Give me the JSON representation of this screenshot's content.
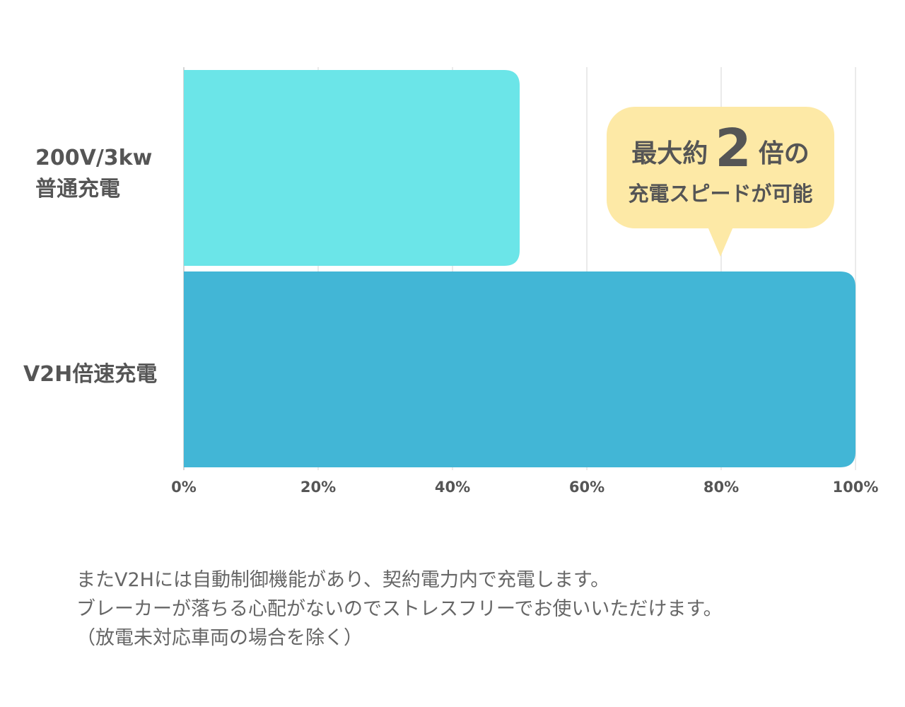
{
  "chart_data": {
    "type": "bar",
    "orientation": "horizontal",
    "categories": [
      "200V/3kw 普通充電",
      "V2H倍速充電"
    ],
    "category_lines": [
      [
        "200V/3kw",
        "普通充電"
      ],
      [
        "V2H倍速充電"
      ]
    ],
    "values": [
      50,
      100
    ],
    "colors": [
      "#6be5e8",
      "#42b6d6"
    ],
    "xlim": [
      0,
      100
    ],
    "xticks": [
      0,
      20,
      40,
      60,
      80,
      100
    ],
    "xtick_labels": [
      "0%",
      "20%",
      "40%",
      "60%",
      "80%",
      "100%"
    ],
    "grid": true,
    "annotation": {
      "line1_pre": "最大約",
      "line1_big": "2",
      "line1_post": "倍の",
      "line2": "充電スピードが可能",
      "points_to": 80,
      "color": "#fde9a6"
    }
  },
  "note": {
    "line1": "またV2Hには自動制御機能があり、契約電力内で充電します。",
    "line2": "ブレーカーが落ちる心配がないのでストレスフリーでお使いいただけます。",
    "line3": "（放電未対応車両の場合を除く）"
  }
}
